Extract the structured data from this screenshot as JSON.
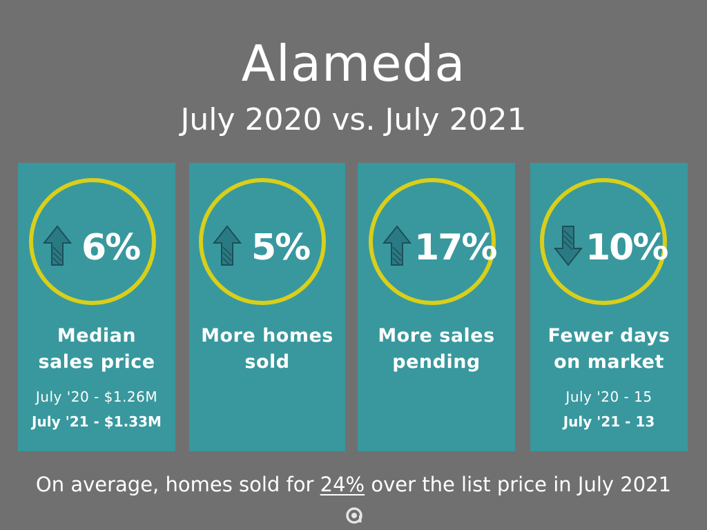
{
  "header": {
    "title": "Alameda",
    "subtitle": "July 2020 vs. July 2021"
  },
  "cards": [
    {
      "direction": "up",
      "percent": "6%",
      "label_lines": [
        "Median",
        "sales price"
      ],
      "line1": "July '20 - $1.26M",
      "line2": "July '21 - $1.33M"
    },
    {
      "direction": "up",
      "percent": "5%",
      "label_lines": [
        "More homes",
        "sold"
      ],
      "line1": "",
      "line2": ""
    },
    {
      "direction": "up",
      "percent": "17%",
      "label_lines": [
        "More sales",
        "pending"
      ],
      "line1": "",
      "line2": ""
    },
    {
      "direction": "down",
      "percent": "10%",
      "label_lines": [
        "Fewer days",
        "on market"
      ],
      "line1": "July '20 - 15",
      "line2": "July '21 - 13"
    }
  ],
  "footer": {
    "before": "On average, homes sold for ",
    "highlight": "24%",
    "after": " over the list price in July 2021"
  },
  "colors": {
    "background": "#707070",
    "card": "#38989e",
    "ring": "#d9cf1a",
    "arrow": "#2a7a84"
  },
  "icons": {
    "up": "arrow-up-icon",
    "down": "arrow-down-icon",
    "logo": "brand-logo-icon"
  }
}
